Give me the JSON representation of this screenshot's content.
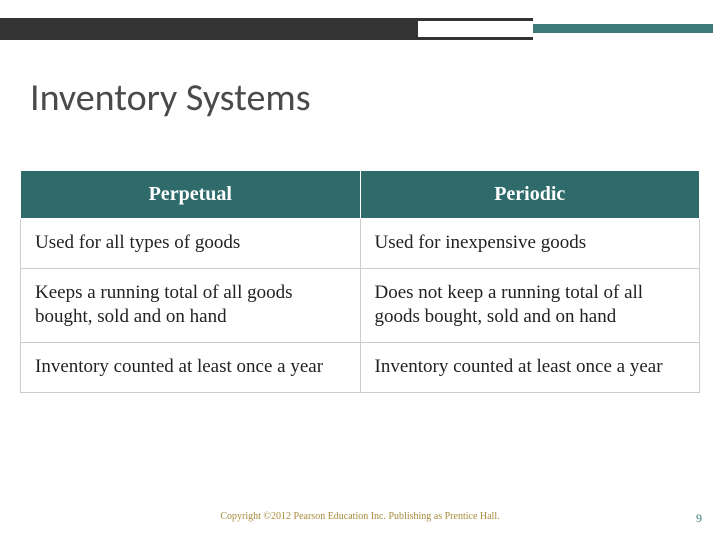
{
  "title": "Inventory Systems",
  "table": {
    "headers": [
      "Perpetual",
      "Periodic"
    ],
    "rows": [
      [
        "Used for all types of goods",
        "Used for inexpensive goods"
      ],
      [
        "Keeps a running total of all goods bought, sold and on hand",
        "Does not keep a running total of all goods bought, sold and on hand"
      ],
      [
        "Inventory counted at least once a year",
        "Inventory counted at least once a year"
      ]
    ]
  },
  "footer": "Copyright ©2012 Pearson Education Inc. Publishing as Prentice Hall.",
  "page_number": "9",
  "colors": {
    "header_bg": "#2f6b6b",
    "accent": "#3d7b7b",
    "dark": "#333333",
    "title_color": "#4a4a4a",
    "footer_color": "#a88b3a"
  }
}
